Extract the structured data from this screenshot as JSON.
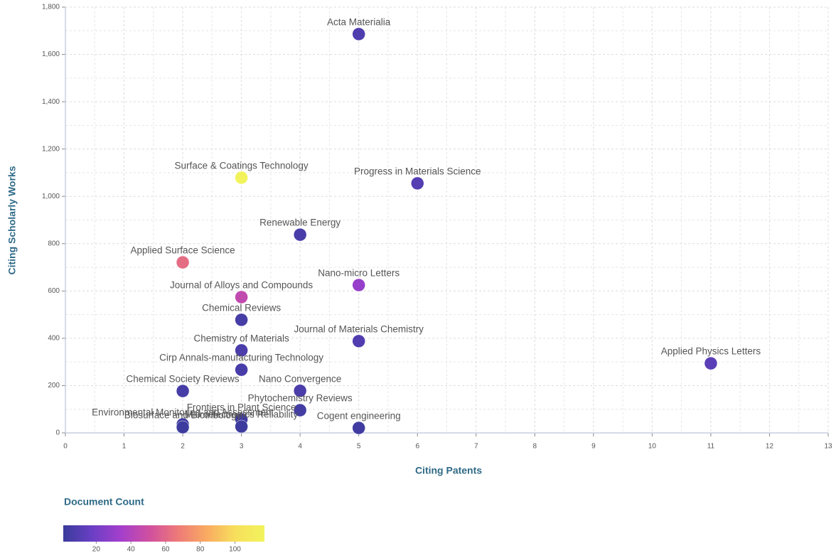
{
  "chart_data": {
    "type": "scatter",
    "xlabel": "Citing Patents",
    "ylabel": "Citing Scholarly Works",
    "colorbar_label": "Document Count",
    "xlim": [
      0,
      13
    ],
    "xticks": [
      0,
      1,
      2,
      3,
      4,
      5,
      6,
      7,
      8,
      9,
      10,
      11,
      12,
      13
    ],
    "ylim": [
      0,
      1800
    ],
    "yticks": [
      0,
      200,
      400,
      600,
      800,
      {
        "value": 1000,
        "label": "1,000"
      },
      {
        "value": 1200,
        "label": "1,200"
      },
      {
        "value": 1400,
        "label": "1,400"
      },
      {
        "value": 1600,
        "label": "1,600"
      },
      {
        "value": 1800,
        "label": "1,800"
      }
    ],
    "grid": true,
    "clim": [
      1,
      117
    ],
    "cticks": [
      20,
      40,
      60,
      80,
      100
    ],
    "colorscale": [
      "#3a3c9c",
      "#6a3fc4",
      "#a43fcc",
      "#d0509f",
      "#ee7a78",
      "#f9ab62",
      "#f7e05c",
      "#f2f35c"
    ],
    "series": [
      {
        "labels": [
          "Acta Materialia",
          "Surface & Coatings Technology",
          "Progress in Materials Science",
          "Renewable Energy",
          "Applied Surface Science",
          "Nano-micro Letters",
          "Journal of Alloys and Compounds",
          "Chemical Reviews",
          "Journal of Materials Chemistry",
          "Chemistry of Materials",
          "Applied Physics Letters",
          "Cirp Annals-manufacturing Technology",
          "Chemical Society Reviews",
          "Nano Convergence",
          "Phytochemistry Reviews",
          "Frontiers in Plant Science",
          "Environmental Monitoring and Assessment",
          "Biosurface and Biotribology",
          "Microelectronics Reliability",
          "Cogent engineering"
        ],
        "x": [
          5,
          3,
          6,
          4,
          2,
          5,
          3,
          3,
          5,
          3,
          11,
          3,
          2,
          4,
          4,
          3,
          2,
          2,
          3,
          5
        ],
        "values": [
          1686,
          1079,
          1055,
          838,
          721,
          625,
          574,
          478,
          388,
          349,
          294,
          267,
          177,
          178,
          96,
          57,
          36,
          24,
          27,
          21
        ],
        "counts": [
          8,
          117,
          10,
          6,
          62,
          30,
          45,
          5,
          9,
          7,
          12,
          6,
          5,
          7,
          4,
          3,
          3,
          2,
          2,
          3
        ]
      }
    ]
  }
}
